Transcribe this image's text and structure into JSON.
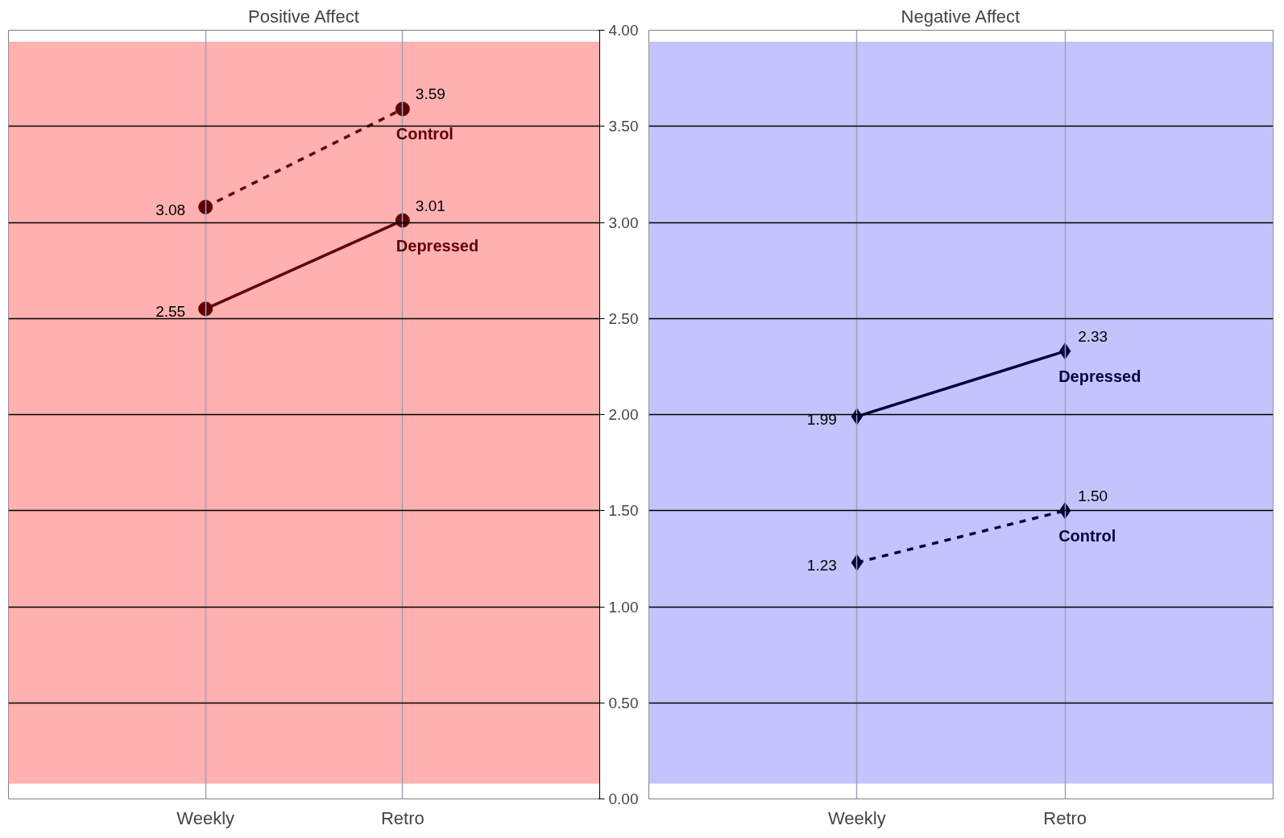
{
  "chart_data": [
    {
      "type": "line",
      "title": "Positive Affect",
      "categories": [
        "Weekly",
        "Retro"
      ],
      "series": [
        {
          "name": "Control",
          "color": "#600000",
          "values": [
            3.08,
            3.59
          ],
          "line_style": "dashed"
        },
        {
          "name": "Depressed",
          "color": "#600000",
          "values": [
            2.55,
            3.01
          ],
          "line_style": "solid"
        }
      ],
      "ylim": [
        0,
        4
      ],
      "yticks": [
        {
          "value": 0,
          "label": "0.00"
        },
        {
          "value": 0.5,
          "label": "0.50"
        },
        {
          "value": 1,
          "label": "1.00"
        },
        {
          "value": 1.5,
          "label": "1.50"
        },
        {
          "value": 2,
          "label": "2.00"
        },
        {
          "value": 2.5,
          "label": "2.50"
        },
        {
          "value": 3,
          "label": "3.00"
        },
        {
          "value": 3.5,
          "label": "3.50"
        },
        {
          "value": 4,
          "label": "4.00"
        }
      ],
      "bands": [
        {
          "axis": "y",
          "from": 0.08,
          "to": 3.94,
          "color": "#ffb0b0"
        }
      ],
      "grid": true,
      "marker": "circle",
      "data_labels": true
    },
    {
      "type": "line",
      "title": "Negative Affect",
      "categories": [
        "Weekly",
        "Retro"
      ],
      "series": [
        {
          "name": "Depressed",
          "color": "#000040",
          "values": [
            1.99,
            2.33
          ],
          "value_labels": [
            "1.99",
            "2.33"
          ],
          "line_style": "solid"
        },
        {
          "name": "Control",
          "color": "#000040",
          "values": [
            1.23,
            1.5
          ],
          "value_labels": [
            "1.23",
            "1.50"
          ],
          "line_style": "dashed"
        }
      ],
      "ylim": [
        0,
        4
      ],
      "yticks": [
        0,
        0.5,
        1,
        1.5,
        2,
        2.5,
        3,
        3.5,
        4
      ],
      "bands": [
        {
          "axis": "y",
          "from": 0.08,
          "to": 3.94,
          "color": "#c4c4fc"
        }
      ],
      "grid": true,
      "marker": "diamond",
      "tick_labels": "x"
    }
  ]
}
